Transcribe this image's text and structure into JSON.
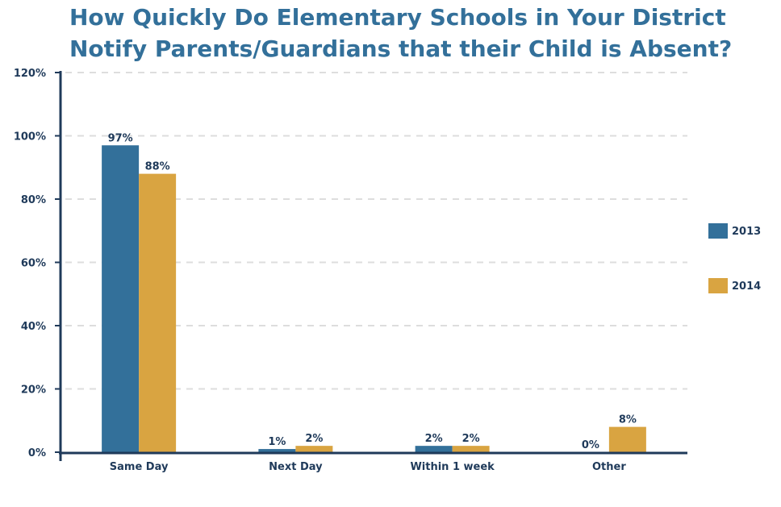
{
  "chart_data": {
    "type": "bar",
    "title": [
      "How Quickly Do Elementary Schools in Your District",
      "Notify Parents/Guardians that their Child is Absent?"
    ],
    "categories": [
      "Same Day",
      "Next Day",
      "Within 1 week",
      "Other"
    ],
    "series": [
      {
        "name": "2013",
        "values": [
          97,
          1,
          2,
          0
        ],
        "labels": [
          "97%",
          "1%",
          "2%",
          "0%"
        ],
        "color": "#33709a"
      },
      {
        "name": "2014",
        "values": [
          88,
          2,
          2,
          8
        ],
        "labels": [
          "88%",
          "2%",
          "2%",
          "8%"
        ],
        "color": "#d9a441"
      }
    ],
    "ylim": [
      0,
      120
    ],
    "yticks": [
      0,
      20,
      40,
      60,
      80,
      100,
      120
    ],
    "ytick_labels": [
      "0%",
      "20%",
      "40%",
      "60%",
      "80%",
      "100%",
      "120%"
    ],
    "grid": true,
    "legend_position": "right",
    "colors": {
      "axis": "#1f3a5a",
      "grid": "#dddddd",
      "title": "#33709a"
    }
  }
}
